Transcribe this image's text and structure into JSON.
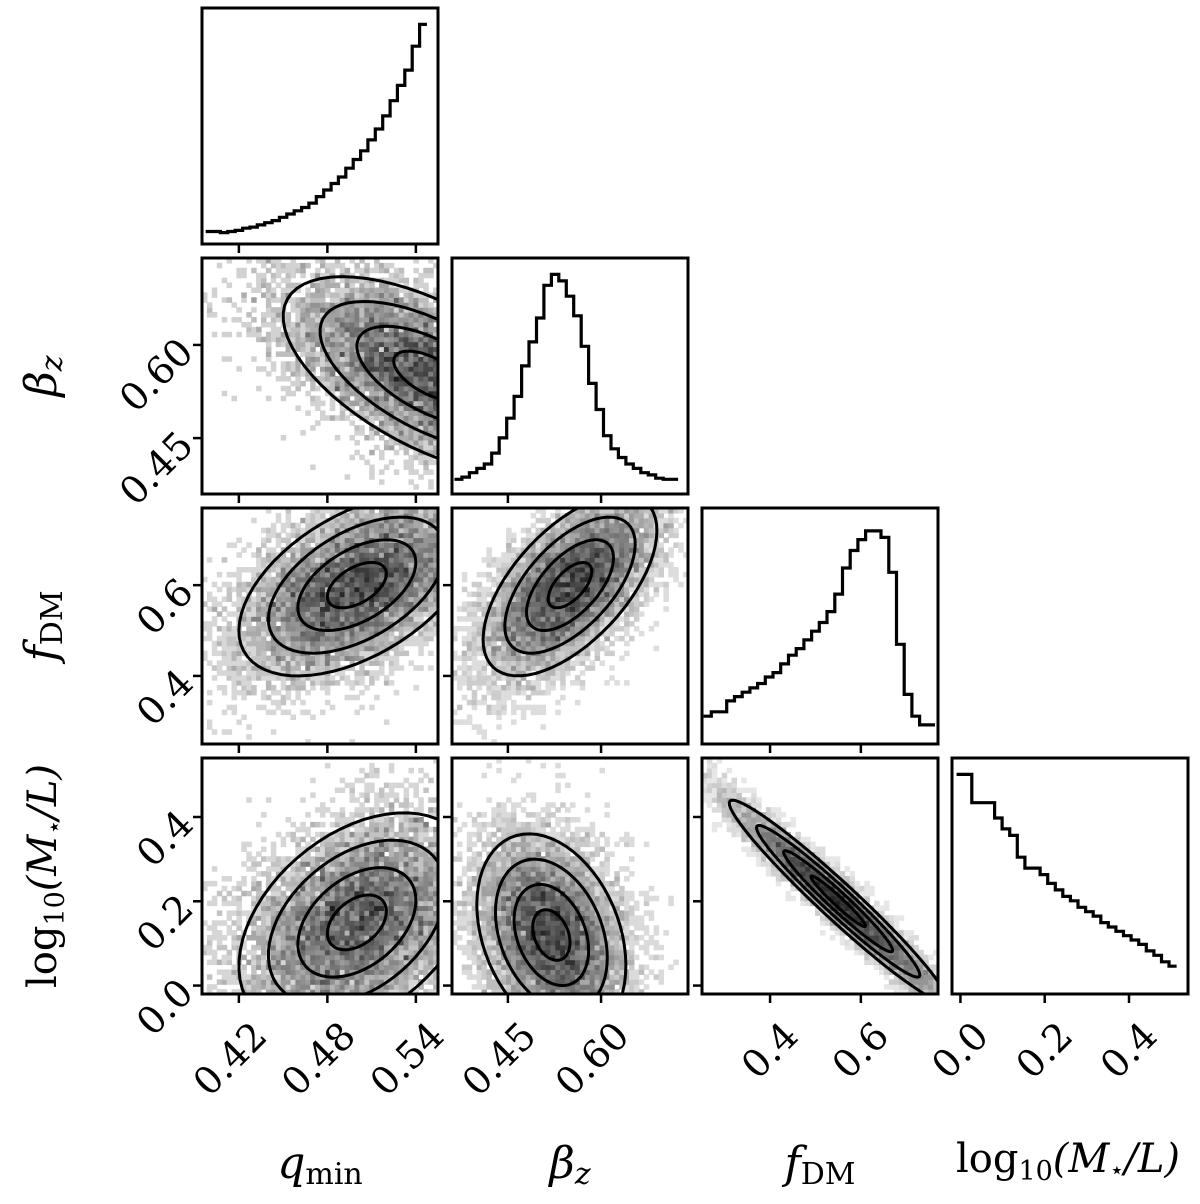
{
  "chart_data": {
    "type": "corner",
    "parameters": [
      {
        "key": "q_min",
        "range": [
          0.395,
          0.555
        ],
        "ticks": [
          0.42,
          0.48,
          0.54
        ],
        "tick_labels": [
          "0.42",
          "0.48",
          "0.54"
        ]
      },
      {
        "key": "beta_z",
        "range": [
          0.36,
          0.74
        ],
        "ticks": [
          0.45,
          0.6
        ],
        "tick_labels": [
          "0.45",
          "0.60"
        ]
      },
      {
        "key": "f_DM",
        "range": [
          0.25,
          0.77
        ],
        "ticks": [
          0.4,
          0.6
        ],
        "tick_labels": [
          "0.4",
          "0.6"
        ]
      },
      {
        "key": "log10_ML",
        "range": [
          -0.02,
          0.54
        ],
        "ticks": [
          0.0,
          0.2,
          0.4
        ],
        "tick_labels": [
          "0.0",
          "0.2",
          "0.4"
        ]
      }
    ],
    "axis_labels": {
      "q_min": {
        "main": "q",
        "sub": "min"
      },
      "beta_z": {
        "main": "β",
        "sub": "z"
      },
      "f_DM": {
        "main": "f",
        "sub": "DM"
      },
      "log10_ML": {
        "pre": "log",
        "sub": "10",
        "post": "(M",
        "star": "⋆",
        "tail": "/L)"
      }
    },
    "histograms": [
      {
        "param": "q_min",
        "x": [
          0.4,
          0.405,
          0.41,
          0.415,
          0.42,
          0.425,
          0.43,
          0.435,
          0.44,
          0.445,
          0.45,
          0.455,
          0.46,
          0.465,
          0.47,
          0.475,
          0.48,
          0.485,
          0.49,
          0.495,
          0.5,
          0.505,
          0.51,
          0.515,
          0.52,
          0.525,
          0.53,
          0.535,
          0.54,
          0.545
        ],
        "density": [
          0.03,
          0.03,
          0.025,
          0.03,
          0.035,
          0.045,
          0.05,
          0.06,
          0.07,
          0.08,
          0.095,
          0.11,
          0.125,
          0.14,
          0.16,
          0.19,
          0.22,
          0.25,
          0.28,
          0.32,
          0.36,
          0.4,
          0.45,
          0.5,
          0.56,
          0.63,
          0.7,
          0.77,
          0.88,
          0.98
        ]
      },
      {
        "param": "beta_z",
        "x": [
          0.37,
          0.382,
          0.394,
          0.406,
          0.418,
          0.43,
          0.442,
          0.454,
          0.466,
          0.478,
          0.49,
          0.502,
          0.514,
          0.526,
          0.538,
          0.55,
          0.562,
          0.574,
          0.586,
          0.598,
          0.61,
          0.622,
          0.634,
          0.646,
          0.658,
          0.67,
          0.682,
          0.694,
          0.706,
          0.718
        ],
        "density": [
          0.04,
          0.05,
          0.07,
          0.09,
          0.11,
          0.16,
          0.23,
          0.32,
          0.42,
          0.56,
          0.67,
          0.78,
          0.93,
          0.98,
          0.95,
          0.88,
          0.79,
          0.65,
          0.48,
          0.36,
          0.24,
          0.18,
          0.14,
          0.11,
          0.09,
          0.07,
          0.06,
          0.045,
          0.04,
          0.04
        ]
      },
      {
        "param": "f_DM",
        "x": [
          0.262,
          0.279,
          0.296,
          0.313,
          0.33,
          0.347,
          0.364,
          0.381,
          0.398,
          0.415,
          0.432,
          0.449,
          0.466,
          0.483,
          0.5,
          0.517,
          0.534,
          0.551,
          0.568,
          0.585,
          0.602,
          0.619,
          0.636,
          0.653,
          0.67,
          0.687,
          0.704,
          0.721,
          0.738,
          0.755
        ],
        "density": [
          0.1,
          0.12,
          0.12,
          0.17,
          0.19,
          0.21,
          0.23,
          0.25,
          0.28,
          0.3,
          0.34,
          0.38,
          0.41,
          0.45,
          0.49,
          0.53,
          0.58,
          0.66,
          0.78,
          0.86,
          0.91,
          0.95,
          0.95,
          0.92,
          0.76,
          0.43,
          0.2,
          0.1,
          0.06,
          0.06
        ]
      },
      {
        "param": "log10_ML",
        "x": [
          0.0,
          0.018,
          0.036,
          0.054,
          0.072,
          0.09,
          0.108,
          0.126,
          0.144,
          0.162,
          0.18,
          0.198,
          0.216,
          0.234,
          0.252,
          0.27,
          0.288,
          0.306,
          0.324,
          0.342,
          0.36,
          0.378,
          0.396,
          0.414,
          0.432,
          0.45,
          0.468,
          0.486,
          0.504
        ],
        "density": [
          0.98,
          0.98,
          0.85,
          0.85,
          0.85,
          0.78,
          0.73,
          0.7,
          0.6,
          0.55,
          0.55,
          0.52,
          0.48,
          0.45,
          0.42,
          0.4,
          0.37,
          0.35,
          0.33,
          0.3,
          0.28,
          0.26,
          0.24,
          0.22,
          0.2,
          0.17,
          0.15,
          0.12,
          0.1
        ]
      }
    ],
    "panels_2d": [
      {
        "x": "q_min",
        "y": "beta_z",
        "mean": [
          0.55,
          0.55
        ],
        "sd": [
          0.05,
          0.08
        ],
        "rho": -0.6
      },
      {
        "x": "q_min",
        "y": "f_DM",
        "mean": [
          0.5,
          0.6
        ],
        "sd": [
          0.04,
          0.1
        ],
        "rho": 0.5
      },
      {
        "x": "beta_z",
        "y": "f_DM",
        "mean": [
          0.55,
          0.6
        ],
        "sd": [
          0.07,
          0.1
        ],
        "rho": 0.6
      },
      {
        "x": "q_min",
        "y": "log10_ML",
        "mean": [
          0.5,
          0.15
        ],
        "sd": [
          0.04,
          0.13
        ],
        "rho": 0.4
      },
      {
        "x": "beta_z",
        "y": "log10_ML",
        "mean": [
          0.52,
          0.12
        ],
        "sd": [
          0.06,
          0.12
        ],
        "rho": -0.3
      },
      {
        "x": "f_DM",
        "y": "log10_ML",
        "mean": [
          0.55,
          0.2
        ],
        "sd": [
          0.12,
          0.12
        ],
        "rho": -0.97
      }
    ]
  }
}
